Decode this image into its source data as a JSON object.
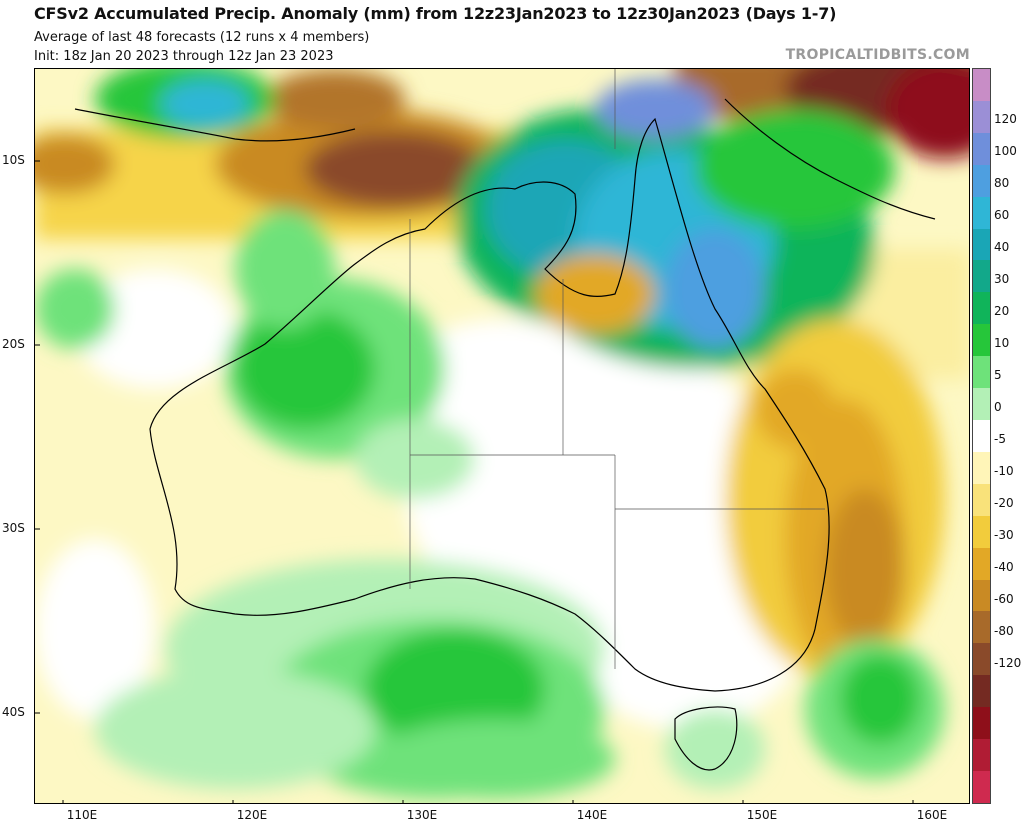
{
  "header": {
    "title": "CFSv2 Accumulated Precip. Anomaly (mm) from 12z23Jan2023 to 12z30Jan2023 (Days 1-7)",
    "subtitle": "Average of last 48 forecasts (12 runs x 4 members)",
    "init": "Init: 18z Jan 20 2023 through 12z Jan 23 2023",
    "brand": "TROPICALTIDBITS.COM"
  },
  "map": {
    "region": "Australia",
    "lat_labels": [
      "10S",
      "20S",
      "30S",
      "40S"
    ],
    "lon_labels": [
      "110E",
      "120E",
      "130E",
      "140E",
      "150E",
      "160E"
    ]
  },
  "colorbar": {
    "unit": "mm",
    "labels": [
      "120",
      "100",
      "80",
      "60",
      "40",
      "30",
      "20",
      "10",
      "5",
      "0",
      "-5",
      "-10",
      "-20",
      "-30",
      "-40",
      "-60",
      "-80",
      "-120"
    ],
    "colors": [
      "#c88dc6",
      "#9b8fd6",
      "#6f8fdb",
      "#4e9fe0",
      "#2fb6d6",
      "#1aa6b6",
      "#12a88a",
      "#10b45a",
      "#26c63a",
      "#6ee27a",
      "#b3f0b6",
      "#ffffff",
      "#fff5b8",
      "#f9e27a",
      "#f2cc3c",
      "#e2a826",
      "#c98a24",
      "#a86a2a",
      "#8a4a2a",
      "#742a22",
      "#8e0f1a",
      "#b01c34",
      "#cf2a4f"
    ]
  }
}
